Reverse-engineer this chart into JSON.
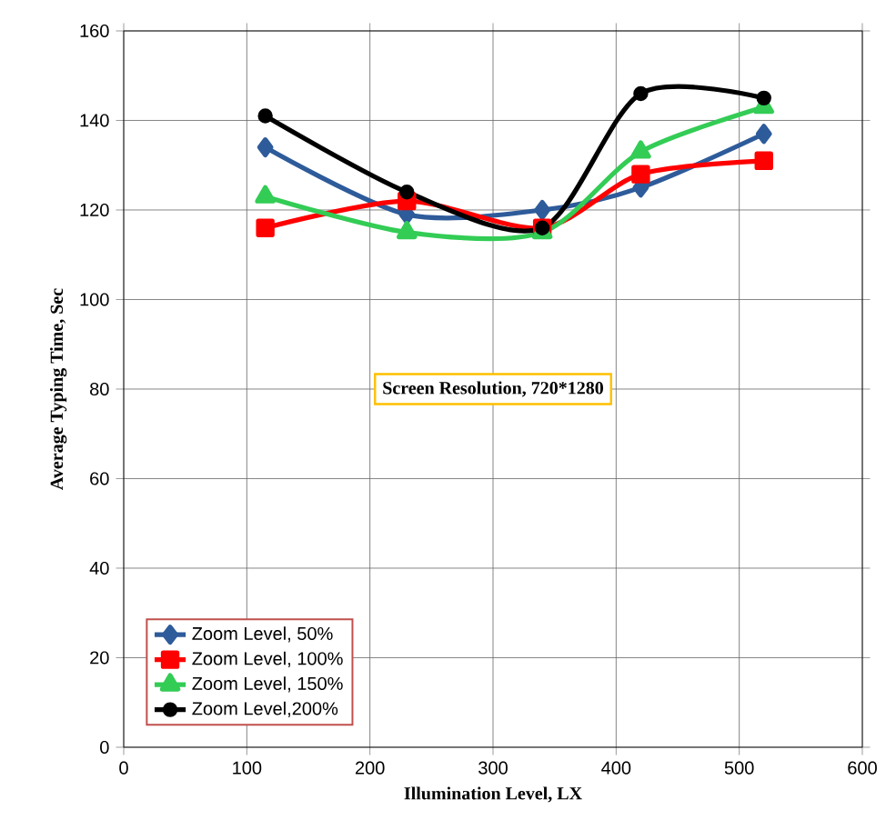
{
  "chart_data": {
    "type": "line",
    "xlabel": "Illumination  Level, LX",
    "ylabel": "Average Typing  Time, Sec",
    "x": [
      115,
      230,
      340,
      420,
      520
    ],
    "series": [
      {
        "name": "Zoom Level, 50%",
        "color": "#2e5b9a",
        "marker": "diamond",
        "values": [
          134,
          119,
          120,
          125,
          137
        ]
      },
      {
        "name": "Zoom Level, 100%",
        "color": "#ff0000",
        "marker": "square",
        "values": [
          116,
          122,
          116,
          128,
          131
        ]
      },
      {
        "name": "Zoom Level, 150%",
        "color": "#33cc55",
        "marker": "triangle",
        "values": [
          123,
          115,
          115,
          133,
          143
        ]
      },
      {
        "name": "Zoom Level,200%",
        "color": "#000000",
        "marker": "circle",
        "values": [
          141,
          124,
          116,
          146,
          145
        ]
      }
    ],
    "xlim": [
      0,
      600
    ],
    "xticks": [
      0,
      100,
      200,
      300,
      400,
      500,
      600
    ],
    "ylim": [
      0,
      160
    ],
    "yticks": [
      0,
      20,
      40,
      60,
      80,
      100,
      120,
      140,
      160
    ],
    "grid": true,
    "legend": "bottom left",
    "line_style": "solid",
    "annotations": [
      "Screen Resolution, 720*1280"
    ]
  }
}
